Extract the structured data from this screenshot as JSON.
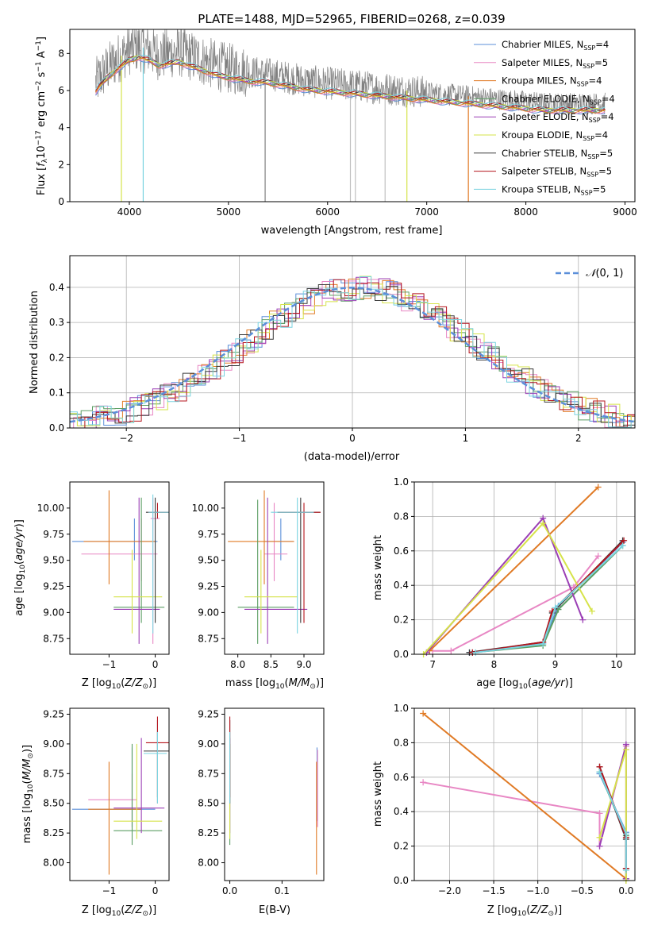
{
  "colors": {
    "series": [
      "#5b8fd9",
      "#e887c4",
      "#e07a25",
      "#5b9e63",
      "#9b3fb5",
      "#d6e34a",
      "#3a3a3a",
      "#b5141d",
      "#7ad3e0"
    ],
    "gaussian": "#5b8fd9"
  },
  "series_labels": [
    "Chabrier MILES, N$_{SSP}$=4",
    "Salpeter MILES, N$_{SSP}$=5",
    "Kroupa MILES, N$_{SSP}$=4",
    "Chabrier ELODIE, N$_{SSP}$=4",
    "Salpeter ELODIE, N$_{SSP}$=4",
    "Kroupa ELODIE, N$_{SSP}$=4",
    "Chabrier STELIB, N$_{SSP}$=5",
    "Salpeter STELIB, N$_{SSP}$=5",
    "Kroupa STELIB, N$_{SSP}$=5"
  ],
  "chart_data": [
    {
      "id": "spectrum",
      "type": "line",
      "title": "PLATE=1488, MJD=52965, FIBERID=0268, z=0.039",
      "xlabel": "wavelength [Angstrom, rest frame]",
      "ylabel": "Flux [f$_\\lambda$10$^{-17}$ erg cm$^{-2}$ s$^{-1}$ A$^{-1}$]",
      "xlim": [
        3400,
        9100
      ],
      "ylim": [
        0,
        9.3
      ],
      "xticks": [
        4000,
        5000,
        6000,
        7000,
        8000,
        9000
      ],
      "yticks": [
        0,
        2,
        4,
        6,
        8
      ],
      "legend": "top-right",
      "continuum": {
        "x": [
          3650,
          3700,
          3800,
          3900,
          4000,
          4100,
          4200,
          4300,
          4400,
          4500,
          4600,
          4700,
          4800,
          4900,
          5000,
          5200,
          5400,
          5600,
          5800,
          6000,
          6200,
          6400,
          6600,
          6800,
          7000,
          7200,
          7400,
          7600,
          7800,
          8000,
          8200,
          8400,
          8600,
          8800
        ],
        "y": [
          6.3,
          6.7,
          7.3,
          7.8,
          8.2,
          8.4,
          8.2,
          7.9,
          8.0,
          8.1,
          7.9,
          7.7,
          7.5,
          7.3,
          7.2,
          7.0,
          6.9,
          6.7,
          6.5,
          6.4,
          6.3,
          6.2,
          6.1,
          6.0,
          5.9,
          5.8,
          5.7,
          5.6,
          5.5,
          5.4,
          5.3,
          5.3,
          5.3,
          5.3
        ]
      }
    },
    {
      "id": "residuals",
      "type": "line",
      "xlabel": "(data-model)/error",
      "ylabel": "Normed distribution",
      "xlim": [
        -2.5,
        2.5
      ],
      "ylim": [
        0,
        0.49
      ],
      "xticks": [
        -2,
        -1,
        0,
        1,
        2
      ],
      "yticks": [
        0.0,
        0.1,
        0.2,
        0.3,
        0.4
      ],
      "grid": true,
      "legend": "top-right",
      "gaussian_label": "$\\mathcal{N}(0,1)$"
    },
    {
      "id": "age-vs-z",
      "type": "scatter",
      "xlabel": "Z [log$_{10}$($Z/Z_\\odot$)]",
      "ylabel": "age  [log$_{10}$($age/yr$)]",
      "xlim": [
        -1.85,
        0.3
      ],
      "ylim": [
        8.6,
        10.25
      ],
      "xticks": [
        -1,
        0
      ],
      "yticks": [
        8.75,
        9.0,
        9.25,
        9.5,
        9.75,
        10.0
      ],
      "points": [
        {
          "s": 0,
          "x": -0.45,
          "y": 9.68,
          "xe": [
            -1.8,
            0.05
          ],
          "ye": [
            9.5,
            9.9
          ]
        },
        {
          "s": 1,
          "x": -0.3,
          "y": 9.56,
          "xe": [
            -1.6,
            0.05
          ],
          "ye": [
            9.3,
            9.9
          ]
        },
        {
          "s": 1,
          "x": -0.05,
          "y": 9.9,
          "xe": [
            -0.1,
            0.1
          ],
          "ye": [
            8.7,
            10.1
          ]
        },
        {
          "s": 2,
          "x": -1.0,
          "y": 9.68,
          "xe": [
            -1.55,
            0.0
          ],
          "ye": [
            9.27,
            10.17
          ]
        },
        {
          "s": 3,
          "x": -0.3,
          "y": 9.05,
          "xe": [
            -0.9,
            0.2
          ],
          "ye": [
            8.9,
            10.1
          ]
        },
        {
          "s": 4,
          "x": -0.35,
          "y": 9.03,
          "xe": [
            -0.9,
            0.1
          ],
          "ye": [
            8.7,
            10.1
          ]
        },
        {
          "s": 5,
          "x": -0.5,
          "y": 9.15,
          "xe": [
            -0.9,
            0.15
          ],
          "ye": [
            8.8,
            9.6
          ]
        },
        {
          "s": 6,
          "x": 0.0,
          "y": 9.96,
          "xe": [
            -0.2,
            0.3
          ],
          "ye": [
            8.9,
            10.1
          ]
        },
        {
          "s": 7,
          "x": 0.05,
          "y": 9.96,
          "xe": [
            -0.15,
            0.3
          ],
          "ye": [
            9.9,
            10.05
          ]
        },
        {
          "s": 8,
          "x": -0.05,
          "y": 9.96,
          "xe": [
            -0.15,
            0.3
          ],
          "ye": [
            8.8,
            10.13
          ]
        }
      ]
    },
    {
      "id": "age-vs-mass",
      "type": "scatter",
      "xlabel": "mass [log$_{10}$($M/M_\\odot$)]",
      "ylabel": "",
      "xlim": [
        7.8,
        9.3
      ],
      "ylim": [
        8.6,
        10.25
      ],
      "xticks": [
        8.0,
        8.5,
        9.0
      ],
      "yticks": [
        8.75,
        9.0,
        9.25,
        9.5,
        9.75,
        10.0
      ],
      "points": [
        {
          "s": 0,
          "x": 8.65,
          "y": 9.68,
          "xe": [
            8.4,
            8.85
          ],
          "ye": [
            9.5,
            9.9
          ]
        },
        {
          "s": 1,
          "x": 8.55,
          "y": 9.56,
          "xe": [
            8.4,
            8.75
          ],
          "ye": [
            9.3,
            10.05
          ]
        },
        {
          "s": 2,
          "x": 8.4,
          "y": 9.68,
          "xe": [
            7.85,
            8.85
          ],
          "ye": [
            9.27,
            10.17
          ]
        },
        {
          "s": 3,
          "x": 8.3,
          "y": 9.05,
          "xe": [
            8.0,
            8.85
          ],
          "ye": [
            8.7,
            10.08
          ]
        },
        {
          "s": 4,
          "x": 8.45,
          "y": 9.03,
          "xe": [
            8.1,
            9.05
          ],
          "ye": [
            8.7,
            10.1
          ]
        },
        {
          "s": 5,
          "x": 8.35,
          "y": 9.15,
          "xe": [
            8.1,
            8.9
          ],
          "ye": [
            8.8,
            9.6
          ]
        },
        {
          "s": 6,
          "x": 8.95,
          "y": 9.96,
          "xe": [
            8.6,
            9.25
          ],
          "ye": [
            8.9,
            10.1
          ]
        },
        {
          "s": 7,
          "x": 9.0,
          "y": 9.96,
          "xe": [
            8.6,
            9.25
          ],
          "ye": [
            8.9,
            10.05
          ]
        },
        {
          "s": 8,
          "x": 8.9,
          "y": 9.96,
          "xe": [
            8.5,
            9.15
          ],
          "ye": [
            8.8,
            10.1
          ]
        }
      ]
    },
    {
      "id": "mass-weight-vs-age",
      "type": "line",
      "xlabel": "age  [log$_{10}$($age/yr$)]",
      "ylabel": "mass weight",
      "xlim": [
        6.7,
        10.3
      ],
      "ylim": [
        0,
        1.0
      ],
      "xticks": [
        7,
        8,
        9,
        10
      ],
      "yticks": [
        0.0,
        0.2,
        0.4,
        0.6,
        0.8,
        1.0
      ],
      "grid": true,
      "series": [
        {
          "s": 0,
          "x": [
            7.6,
            8.8,
            9.05,
            10.1
          ],
          "y": [
            0.01,
            0.06,
            0.28,
            0.65
          ]
        },
        {
          "s": 1,
          "x": 7.0,
          "y": 0,
          "xs": [
            7.0,
            7.3,
            9.3,
            9.7
          ],
          "ys": [
            0.02,
            0.02,
            0.39,
            0.57
          ]
        },
        {
          "s": 2,
          "x": [
            6.95,
            9.7
          ],
          "y": [
            0.02,
            0.97
          ]
        },
        {
          "s": 3,
          "x": [
            7.65,
            8.8,
            9.05,
            10.1
          ],
          "y": [
            0.01,
            0.05,
            0.26,
            0.63
          ]
        },
        {
          "s": 4,
          "x": [
            6.9,
            8.8,
            9.45
          ],
          "y": [
            0.01,
            0.79,
            0.2
          ]
        },
        {
          "s": 5,
          "x": [
            6.85,
            8.8,
            9.6
          ],
          "y": [
            0.0,
            0.76,
            0.25
          ]
        },
        {
          "s": 6,
          "x": [
            7.6,
            8.8,
            8.95,
            10.1
          ],
          "y": [
            0.01,
            0.07,
            0.24,
            0.66
          ]
        },
        {
          "s": 7,
          "x": [
            7.65,
            8.8,
            8.95,
            10.12
          ],
          "y": [
            0.01,
            0.07,
            0.25,
            0.66
          ]
        },
        {
          "s": 8,
          "x": [
            7.7,
            8.8,
            9.0,
            10.1
          ],
          "y": [
            0.01,
            0.06,
            0.27,
            0.63
          ]
        }
      ]
    },
    {
      "id": "mass-vs-z",
      "type": "scatter",
      "xlabel": "Z [log$_{10}$($Z/Z_\\odot$)]",
      "ylabel": "mass [log$_{10}$($M/M_\\odot$)]",
      "xlim": [
        -1.85,
        0.3
      ],
      "ylim": [
        7.85,
        9.3
      ],
      "xticks": [
        -1,
        0
      ],
      "yticks": [
        8.0,
        8.25,
        8.5,
        8.75,
        9.0,
        9.25
      ],
      "points": [
        {
          "s": 0,
          "x": -0.5,
          "y": 8.45,
          "xe": [
            -1.8,
            0.0
          ],
          "ye": [
            8.3,
            8.97
          ]
        },
        {
          "s": 1,
          "x": -0.5,
          "y": 8.53,
          "xe": [
            -1.45,
            -0.4
          ],
          "ye": [
            8.3,
            8.75
          ]
        },
        {
          "s": 2,
          "x": -1.0,
          "y": 8.45,
          "xe": [
            -1.45,
            -0.3
          ],
          "ye": [
            7.9,
            8.85
          ]
        },
        {
          "s": 3,
          "x": -0.5,
          "y": 8.27,
          "xe": [
            -0.9,
            0.15
          ],
          "ye": [
            8.15,
            9.0
          ]
        },
        {
          "s": 4,
          "x": -0.3,
          "y": 8.46,
          "xe": [
            -0.9,
            0.2
          ],
          "ye": [
            8.25,
            9.05
          ]
        },
        {
          "s": 5,
          "x": -0.4,
          "y": 8.35,
          "xe": [
            -0.9,
            0.15
          ],
          "ye": [
            8.2,
            9.0
          ]
        },
        {
          "s": 6,
          "x": 0.05,
          "y": 8.94,
          "xe": [
            -0.25,
            0.3
          ],
          "ye": [
            8.5,
            9.2
          ]
        },
        {
          "s": 7,
          "x": 0.05,
          "y": 9.01,
          "xe": [
            -0.2,
            0.3
          ],
          "ye": [
            8.55,
            9.23
          ]
        },
        {
          "s": 8,
          "x": 0.05,
          "y": 8.92,
          "xe": [
            -0.25,
            0.25
          ],
          "ye": [
            8.5,
            9.1
          ]
        }
      ]
    },
    {
      "id": "mass-vs-ebv",
      "type": "scatter",
      "xlabel": "E(B-V)",
      "ylabel": "",
      "xlim": [
        -0.01,
        0.18
      ],
      "ylim": [
        7.85,
        9.3
      ],
      "xticks": [
        0.0,
        0.1
      ],
      "yticks": [
        8.0,
        8.25,
        8.5,
        8.75,
        9.0,
        9.25
      ],
      "points": [
        {
          "s": 0,
          "x": 0.167,
          "y": 8.7,
          "ye": [
            8.35,
            8.97
          ]
        },
        {
          "s": 1,
          "x": 0.168,
          "y": 8.6,
          "ye": [
            8.3,
            8.95
          ]
        },
        {
          "s": 2,
          "x": 0.166,
          "y": 8.4,
          "ye": [
            7.9,
            8.85
          ]
        },
        {
          "s": 3,
          "x": 0.0,
          "y": 8.6,
          "ye": [
            8.15,
            9.0
          ]
        },
        {
          "s": 4,
          "x": 0.0,
          "y": 8.7,
          "ye": [
            8.25,
            9.05
          ]
        },
        {
          "s": 5,
          "x": 0.0,
          "y": 8.5,
          "ye": [
            8.2,
            9.0
          ]
        },
        {
          "s": 6,
          "x": 0.0,
          "y": 8.9,
          "ye": [
            8.5,
            9.2
          ]
        },
        {
          "s": 7,
          "x": 0.0,
          "y": 9.0,
          "ye": [
            8.55,
            9.23
          ]
        },
        {
          "s": 8,
          "x": 0.0,
          "y": 8.85,
          "ye": [
            8.5,
            9.1
          ]
        }
      ]
    },
    {
      "id": "mass-weight-vs-z",
      "type": "line",
      "xlabel": "Z [log$_{10}$($Z/Z_\\odot$)]",
      "ylabel": "mass weight",
      "xlim": [
        -2.4,
        0.1
      ],
      "ylim": [
        0,
        1.0
      ],
      "xticks": [
        -2.0,
        -1.5,
        -1.0,
        -0.5,
        0.0
      ],
      "yticks": [
        0.0,
        0.2,
        0.4,
        0.6,
        0.8,
        1.0
      ],
      "grid": true,
      "series": [
        {
          "s": 0,
          "x": [
            -0.3,
            0.0,
            0.0
          ],
          "y": [
            0.62,
            0.28,
            0.01
          ]
        },
        {
          "s": 1,
          "x": [
            -2.3,
            -0.3,
            -0.3,
            0.0
          ],
          "y": [
            0.57,
            0.39,
            0.2,
            0.78
          ]
        },
        {
          "s": 2,
          "x": [
            -2.3,
            0.0
          ],
          "y": [
            0.97,
            0.01
          ]
        },
        {
          "s": 3,
          "x": [
            -0.3,
            0.0,
            0.0
          ],
          "y": [
            0.63,
            0.26,
            0.01
          ]
        },
        {
          "s": 4,
          "x": [
            -0.3,
            0.0,
            0.0
          ],
          "y": [
            0.2,
            0.79,
            0.01
          ]
        },
        {
          "s": 5,
          "x": [
            -0.3,
            0.0,
            0.0
          ],
          "y": [
            0.25,
            0.76,
            0.0
          ]
        },
        {
          "s": 6,
          "x": [
            -0.3,
            0.0,
            0.0
          ],
          "y": [
            0.66,
            0.24,
            0.07
          ]
        },
        {
          "s": 7,
          "x": [
            -0.3,
            0.0,
            0.0
          ],
          "y": [
            0.66,
            0.25,
            0.07
          ]
        },
        {
          "s": 8,
          "x": [
            -0.3,
            0.0,
            0.0
          ],
          "y": [
            0.63,
            0.27,
            0.06
          ]
        }
      ]
    }
  ]
}
